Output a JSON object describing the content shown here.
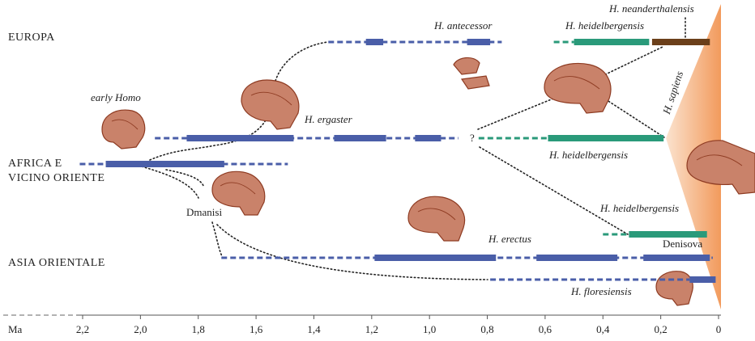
{
  "regions": [
    "EUROPA",
    "AFRICA E",
    "VICINO ORIENTE",
    "ASIA ORIENTALE"
  ],
  "axis": {
    "unit": "Ma",
    "xlim": [
      2.2,
      0
    ],
    "ticks": [
      {
        "value": 2.2,
        "label": "2,2"
      },
      {
        "value": 2.0,
        "label": "2,0"
      },
      {
        "value": 1.8,
        "label": "1,8"
      },
      {
        "value": 1.6,
        "label": "1,6"
      },
      {
        "value": 1.4,
        "label": "1,4"
      },
      {
        "value": 1.2,
        "label": "1,2"
      },
      {
        "value": 1.0,
        "label": "1,0"
      },
      {
        "value": 0.8,
        "label": "0,8"
      },
      {
        "value": 0.6,
        "label": "0,6"
      },
      {
        "value": 0.4,
        "label": "0,4"
      },
      {
        "value": 0.2,
        "label": "0,2"
      },
      0
    ]
  },
  "lineages": [
    {
      "color": "#4a5ea8",
      "segments": [
        {
          "style": "dashed",
          "start": 1.35,
          "end": 0.75
        },
        {
          "style": "solid",
          "start": 1.22,
          "end": 1.16
        },
        {
          "style": "solid",
          "start": 0.87,
          "end": 0.79
        }
      ]
    },
    {
      "color": "#2a9a7a",
      "segments": [
        {
          "style": "dashed",
          "start": 0.57,
          "end": 0.5
        },
        {
          "style": "solid",
          "start": 0.5,
          "end": 0.24
        }
      ]
    },
    {
      "color": "#6b3f1a",
      "segments": [
        {
          "style": "solid",
          "start": 0.23,
          "end": 0.03
        }
      ]
    },
    {
      "color": "#4a5ea8",
      "segments": [
        {
          "style": "dashed",
          "start": 1.95,
          "end": 0.9
        },
        {
          "style": "solid",
          "start": 1.84,
          "end": 1.47
        },
        {
          "style": "solid",
          "start": 1.33,
          "end": 1.15
        },
        {
          "style": "solid",
          "start": 1.05,
          "end": 0.96
        }
      ]
    },
    {
      "color": "#2a9a7a",
      "segments": [
        {
          "style": "dashed",
          "start": 0.83,
          "end": 0.59
        },
        {
          "style": "solid",
          "start": 0.59,
          "end": 0.19
        }
      ]
    },
    {
      "color": "#4a5ea8",
      "segments": [
        {
          "style": "dashed",
          "start": 2.21,
          "end": 1.49
        },
        {
          "style": "solid",
          "start": 2.12,
          "end": 1.71
        }
      ]
    },
    {
      "color": "#2a9a7a",
      "segments": [
        {
          "style": "dashed",
          "start": 0.4,
          "end": 0.31
        },
        {
          "style": "solid",
          "start": 0.31,
          "end": 0.04
        }
      ]
    },
    {
      "color": "#4a5ea8",
      "segments": [
        {
          "style": "dashed",
          "start": 1.72,
          "end": 0.02
        },
        {
          "style": "solid",
          "start": 1.19,
          "end": 0.77
        },
        {
          "style": "solid",
          "start": 0.63,
          "end": 0.35
        },
        {
          "style": "solid",
          "start": 0.26,
          "end": 0.03
        }
      ]
    },
    {
      "color": "#4a5ea8",
      "segments": [
        {
          "style": "dashed",
          "start": 0.79,
          "end": 0.1
        },
        {
          "style": "solid",
          "start": 0.1,
          "end": 0.01
        }
      ]
    }
  ],
  "labels": [
    "early Homo",
    "H. ergaster",
    "H. antecessor",
    "H. heidelbergensis",
    "H. neanderthalensis",
    "H. heidelbergensis",
    "H. sapiens",
    "Dmanisi",
    "H. heidelbergensis",
    "H. erectus",
    "Denisova",
    "H. floresiensis",
    "?"
  ]
}
